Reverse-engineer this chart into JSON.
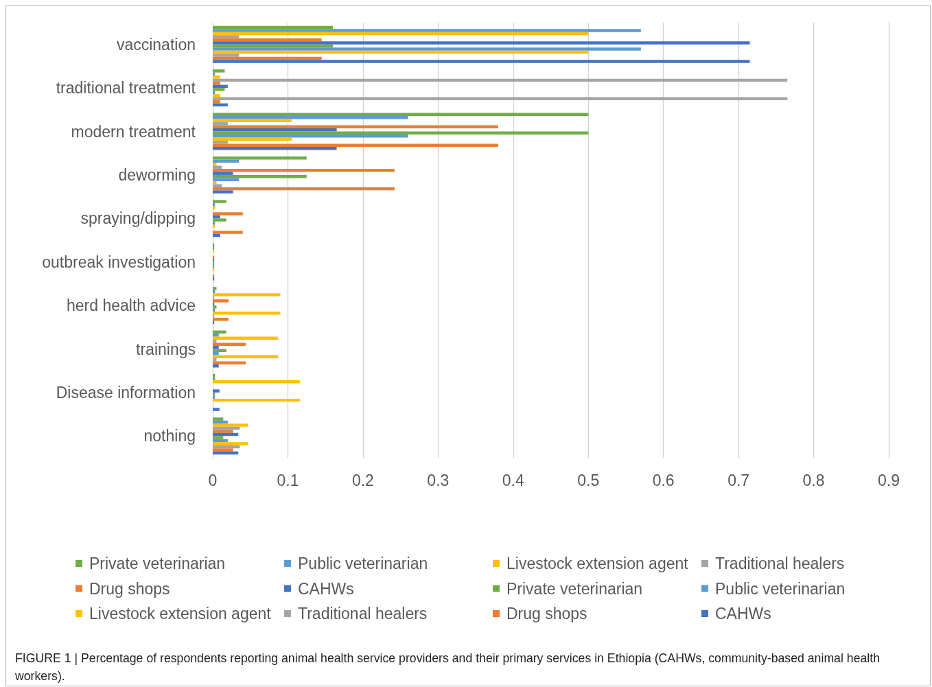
{
  "chart_data": {
    "type": "bar",
    "orientation": "horizontal",
    "categories": [
      "vaccination",
      "traditional treatment",
      "modern treatment",
      "deworming",
      "spraying/dipping",
      "outbreak investigation",
      "herd health advice",
      "trainings",
      "Disease information",
      "nothing"
    ],
    "series": [
      {
        "name": "Private veterinarian",
        "color": "#70ad47",
        "values": [
          0.16,
          0.016,
          0.5,
          0.125,
          0.018,
          0.002,
          0.005,
          0.018,
          0.003,
          0.014
        ]
      },
      {
        "name": "Public veterinarian",
        "color": "#5b9bd5",
        "values": [
          0.57,
          0.003,
          0.26,
          0.035,
          0.003,
          0.002,
          0.003,
          0.008,
          0.003,
          0.02
        ]
      },
      {
        "name": "Livestock extension agent",
        "color": "#ffc000",
        "values": [
          0.5,
          0.01,
          0.105,
          0.005,
          0.003,
          0.002,
          0.09,
          0.087,
          0.116,
          0.047
        ]
      },
      {
        "name": "Traditional healers",
        "color": "#a5a5a5",
        "values": [
          0.035,
          0.765,
          0.02,
          0.012,
          0,
          0,
          0.002,
          0.005,
          0,
          0.036
        ]
      },
      {
        "name": "Drug shops",
        "color": "#ed7d31",
        "values": [
          0.145,
          0.01,
          0.38,
          0.242,
          0.04,
          0.002,
          0.021,
          0.044,
          0,
          0.027
        ]
      },
      {
        "name": "CAHWs",
        "color": "#4472c4",
        "values": [
          0.715,
          0.02,
          0.165,
          0.027,
          0.01,
          0.002,
          0.002,
          0.008,
          0.009,
          0.034
        ]
      },
      {
        "name": "Private veterinarian",
        "color": "#70ad47",
        "values": [
          0.16,
          0.016,
          0.5,
          0.125,
          0.018,
          0.002,
          0.005,
          0.018,
          0.003,
          0.014
        ]
      },
      {
        "name": "Public veterinarian",
        "color": "#5b9bd5",
        "values": [
          0.57,
          0.003,
          0.26,
          0.035,
          0.003,
          0.002,
          0.003,
          0.008,
          0.003,
          0.02
        ]
      },
      {
        "name": "Livestock extension agent",
        "color": "#ffc000",
        "values": [
          0.5,
          0.01,
          0.105,
          0.005,
          0.003,
          0.002,
          0.09,
          0.087,
          0.116,
          0.047
        ]
      },
      {
        "name": "Traditional healers",
        "color": "#a5a5a5",
        "values": [
          0.035,
          0.765,
          0.02,
          0.012,
          0,
          0,
          0.002,
          0.005,
          0,
          0.036
        ]
      },
      {
        "name": "Drug shops",
        "color": "#ed7d31",
        "values": [
          0.145,
          0.01,
          0.38,
          0.242,
          0.04,
          0.002,
          0.021,
          0.044,
          0,
          0.027
        ]
      },
      {
        "name": "CAHWs",
        "color": "#4472c4",
        "values": [
          0.715,
          0.02,
          0.165,
          0.027,
          0.01,
          0.002,
          0.002,
          0.008,
          0.009,
          0.034
        ]
      }
    ],
    "xlim": [
      0,
      0.9
    ],
    "xticks": [
      0,
      0.1,
      0.2,
      0.3,
      0.4,
      0.5,
      0.6,
      0.7,
      0.8,
      0.9
    ],
    "grid": "x",
    "legend": "bottom",
    "annotations": [
      "FIGURE 1 | Percentage of respondents reporting animal health service providers and their primary services in Ethiopia (CAHWs, community-based animal health workers)."
    ]
  }
}
